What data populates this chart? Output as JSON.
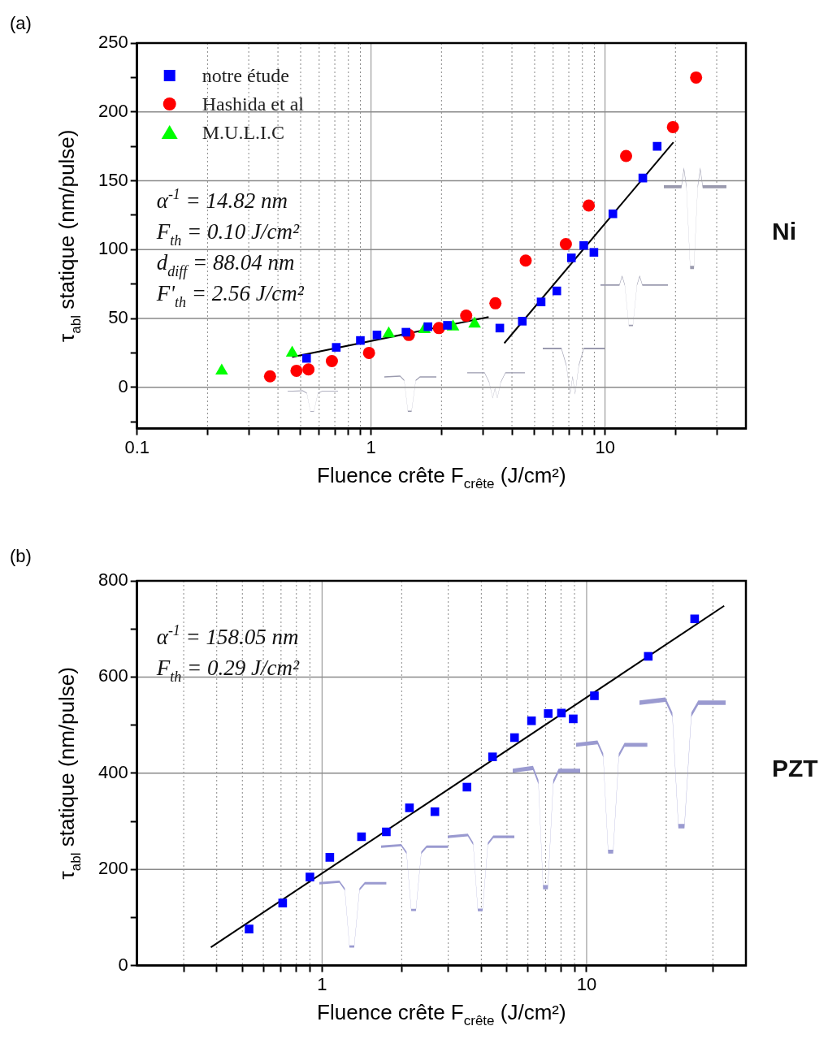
{
  "chart_data": [
    {
      "type": "scatter",
      "title": "(a)",
      "xlabel": "Fluence crête F$_{crête}$ (J/cm²)",
      "ylabel": "τ$_{abl}$ statique (nm/pulse)",
      "log": "x",
      "xlim": [
        0.1,
        40
      ],
      "xticks": [
        0.1,
        {
          "value": 0.2,
          "label": null
        },
        {
          "value": 0.3,
          "label": null
        },
        {
          "value": 0.4,
          "label": null
        },
        {
          "value": 0.5,
          "label": null
        },
        {
          "value": 0.6,
          "label": null
        },
        {
          "value": 0.7,
          "label": null
        },
        {
          "value": 0.8,
          "label": null
        },
        {
          "value": 0.9,
          "label": null
        },
        1,
        {
          "value": 2,
          "label": null
        },
        {
          "value": 3,
          "label": null
        },
        {
          "value": 4,
          "label": null
        },
        {
          "value": 5,
          "label": null
        },
        {
          "value": 6,
          "label": null
        },
        {
          "value": 7,
          "label": null
        },
        {
          "value": 8,
          "label": null
        },
        {
          "value": 9,
          "label": null
        },
        10,
        {
          "value": 20,
          "label": null
        },
        {
          "value": 30,
          "label": null
        }
      ],
      "ylim": [
        -30,
        250
      ],
      "yticks": [
        {
          "value": -25,
          "label": null
        },
        0,
        {
          "value": 25,
          "label": null
        },
        50,
        {
          "value": 75,
          "label": null
        },
        100,
        {
          "value": 125,
          "label": null
        },
        150,
        {
          "value": 175,
          "label": null
        },
        200,
        {
          "value": 225,
          "label": null
        },
        250
      ],
      "grid": true,
      "legend": "top left",
      "annotations": [
        "α$^{-1}$ = 14.82 nm",
        "F$_{th}$ = 0.10 J/cm²",
        "d$_{diff}$ = 88.04 nm",
        "F'$_{th}$ = 2.56 J/cm²",
        "Ni"
      ],
      "series": [
        {
          "name": "notre étude",
          "type": "scatter",
          "marker": "square",
          "color": "#0000ff",
          "x": [
            0.53,
            0.71,
            0.9,
            1.06,
            1.41,
            1.75,
            2.12,
            3.55,
            4.43,
            5.33,
            6.22,
            7.18,
            8.11,
            8.96,
            10.8,
            14.5,
            16.7
          ],
          "values": [
            21,
            29,
            34,
            38,
            40,
            44,
            45,
            43,
            48,
            62,
            70,
            94,
            103,
            98,
            126,
            152,
            175
          ]
        },
        {
          "name": "Hashida et al",
          "type": "scatter",
          "marker": "circle",
          "color": "#ff0000",
          "x": [
            0.37,
            0.48,
            0.54,
            0.68,
            0.98,
            1.45,
            1.95,
            2.55,
            3.4,
            4.58,
            6.8,
            8.52,
            12.3,
            19.5,
            24.5
          ],
          "values": [
            8,
            12,
            13,
            19,
            25,
            38,
            43,
            52,
            61,
            92,
            104,
            132,
            168,
            189,
            225
          ]
        },
        {
          "name": "M.U.L.I.C",
          "type": "scatter",
          "marker": "triangle",
          "color": "#00ff00",
          "x": [
            0.23,
            0.46,
            1.19,
            1.69,
            2.24,
            2.77
          ],
          "values": [
            12,
            25,
            39,
            42,
            44,
            46
          ]
        },
        {
          "type": "line",
          "marker": "none",
          "color": "#000000",
          "x": [
            0.46,
            3.18
          ],
          "values": [
            22,
            51
          ]
        },
        {
          "type": "line",
          "marker": "none",
          "color": "#000000",
          "x": [
            3.71,
            19.6
          ],
          "values": [
            32,
            178
          ]
        }
      ]
    },
    {
      "type": "scatter",
      "title": "(b)",
      "xlabel": "Fluence crête F$_{crête}$ (J/cm²)",
      "ylabel": "τ$_{abl}$ statique (nm/pulse)",
      "log": "x",
      "xlim": [
        0.2,
        40
      ],
      "xticks": [
        {
          "value": 0.3,
          "label": null
        },
        {
          "value": 0.4,
          "label": null
        },
        {
          "value": 0.5,
          "label": null
        },
        {
          "value": 0.6,
          "label": null
        },
        {
          "value": 0.7,
          "label": null
        },
        {
          "value": 0.8,
          "label": null
        },
        {
          "value": 0.9,
          "label": null
        },
        1,
        {
          "value": 2,
          "label": null
        },
        {
          "value": 3,
          "label": null
        },
        {
          "value": 4,
          "label": null
        },
        {
          "value": 5,
          "label": null
        },
        {
          "value": 6,
          "label": null
        },
        {
          "value": 7,
          "label": null
        },
        {
          "value": 8,
          "label": null
        },
        {
          "value": 9,
          "label": null
        },
        10,
        {
          "value": 20,
          "label": null
        },
        {
          "value": 30,
          "label": null
        }
      ],
      "ylim": [
        0,
        800
      ],
      "yticks": [
        0,
        {
          "value": 100,
          "label": null
        },
        200,
        {
          "value": 300,
          "label": null
        },
        400,
        {
          "value": 500,
          "label": null
        },
        600,
        {
          "value": 700,
          "label": null
        },
        800
      ],
      "grid": true,
      "annotations": [
        "α$^{-1}$ = 158.05 nm",
        "F$_{th}$ = 0.29 J/cm²",
        "PZT"
      ],
      "series": [
        {
          "type": "scatter",
          "marker": "square",
          "color": "#0000ff",
          "x": [
            0.53,
            0.71,
            0.9,
            1.07,
            1.41,
            1.75,
            2.14,
            2.67,
            3.53,
            4.41,
            5.34,
            6.19,
            7.16,
            8.03,
            8.9,
            10.7,
            17.1,
            25.6
          ],
          "values": [
            76,
            130,
            184,
            225,
            268,
            278,
            328,
            320,
            371,
            434,
            474,
            509,
            524,
            525,
            513,
            561,
            643,
            721
          ]
        },
        {
          "type": "line",
          "marker": "none",
          "color": "#000000",
          "x": [
            0.38,
            33.1
          ],
          "values": [
            38,
            748
          ]
        }
      ]
    }
  ]
}
